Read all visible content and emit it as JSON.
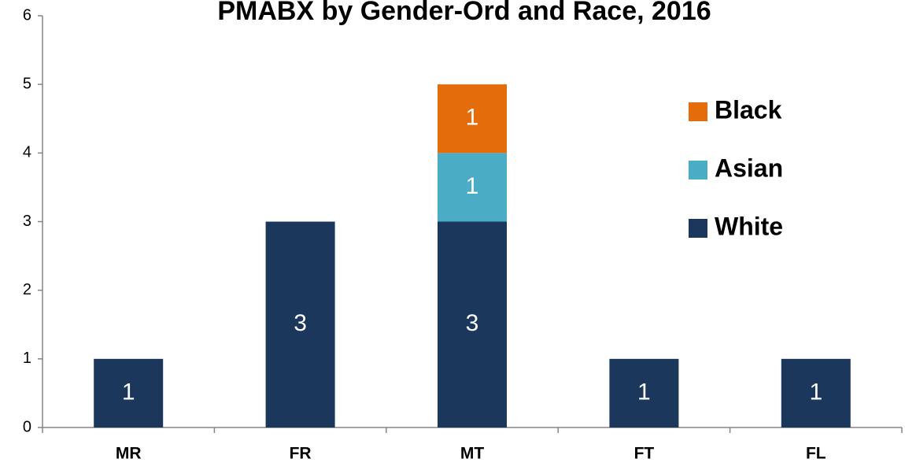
{
  "chart_data": {
    "type": "stacked_bar",
    "title": "PMABX by Gender-Ord and Race, 2016",
    "categories": [
      "MR",
      "FR",
      "MT",
      "FT",
      "FL"
    ],
    "series": [
      {
        "name": "White",
        "color": "#1b375c",
        "values": [
          1,
          3,
          3,
          1,
          1
        ]
      },
      {
        "name": "Asian",
        "color": "#4bacc6",
        "values": [
          0,
          0,
          1,
          0,
          0
        ]
      },
      {
        "name": "Black",
        "color": "#e46c0a",
        "values": [
          0,
          0,
          1,
          0,
          0
        ]
      }
    ],
    "ylim": [
      0,
      6
    ],
    "yticks": [
      0,
      1,
      2,
      3,
      4,
      5,
      6
    ],
    "grid": false,
    "legend": "right"
  }
}
